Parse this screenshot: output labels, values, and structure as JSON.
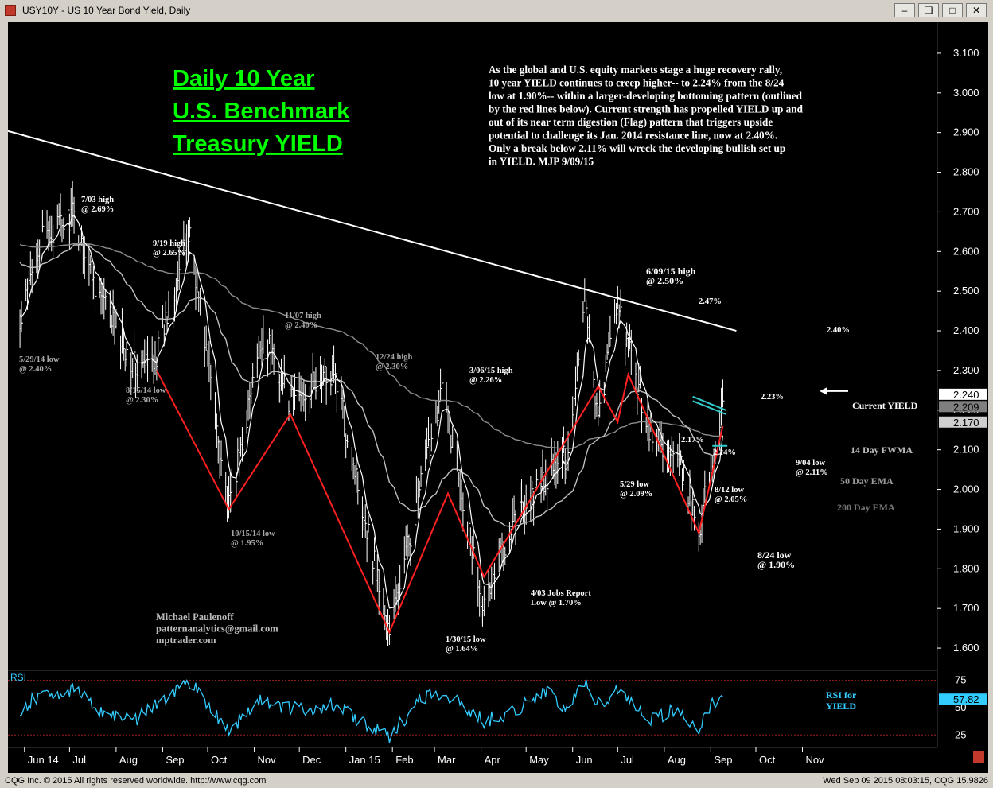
{
  "window": {
    "title": "USY10Y - US 10 Year Bond Yield, Daily",
    "buttons": [
      "min",
      "restore",
      "max",
      "close"
    ]
  },
  "colors": {
    "background": "#000000",
    "price_bars": "#ffffff",
    "trendline": "#ffffff",
    "pattern_lines": "#ff2020",
    "ema_fast": "#ffffff",
    "ema_50": "#bfbfbf",
    "ema_200": "#8c8c8c",
    "flag_lines": "#33cccc",
    "title_text": "#00ff00",
    "annotation_text": "#ffffff"
  },
  "chart_data": [
    {
      "type": "line",
      "title": "Daily 10 Year U.S. Benchmark Treasury YIELD",
      "title_lines": [
        "Daily 10 Year",
        "U.S. Benchmark",
        "Treasury YIELD"
      ],
      "commentary": [
        "As the global and U.S. equity markets stage a huge recovery rally,",
        "10 year YIELD continues to creep higher-- to 2.24% from the 8/24",
        "low at 1.90%-- within a larger-developing bottoming pattern (outlined",
        "by the red lines below). Current strength has propelled YIELD up and",
        "out of its near term digestion (Flag) pattern that triggers upside",
        "potential to challenge its Jan. 2014 resistance line, now at 2.40%.",
        "Only a break below 2.11% will wreck the developing bullish set up",
        "in YIELD.  MJP 9/09/15"
      ],
      "author": [
        "Michael Paulenoff",
        "patternanalytics@gmail.com",
        "mptrader.com"
      ],
      "x_labels": [
        "Jun 14",
        "Jul",
        "Aug",
        "Sep",
        "Oct",
        "Nov",
        "Dec",
        "Jan 15",
        "Feb",
        "Mar",
        "Apr",
        "May",
        "Jun",
        "Jul",
        "Aug",
        "Sep",
        "Oct",
        "Nov"
      ],
      "y_ticks": [
        "3.100",
        "3.000",
        "2.900",
        "2.800",
        "2.700",
        "2.600",
        "2.500",
        "2.400",
        "2.300",
        "2.200",
        "2.100",
        "2.000",
        "1.900",
        "1.800",
        "1.700",
        "1.600"
      ],
      "ylim": [
        1.55,
        3.17
      ],
      "log_scale": false,
      "grid": false,
      "price_flags": [
        {
          "label": "2.240",
          "value": 2.24,
          "style": "white"
        },
        {
          "label": "2.209",
          "value": 2.209,
          "style": "gray"
        },
        {
          "label": "2.170",
          "value": 2.17,
          "style": "lightgray"
        }
      ],
      "series": [
        {
          "name": "YIELD",
          "pivots": [
            [
              "2014-05-29",
              2.4
            ],
            [
              "2014-06-10",
              2.62
            ],
            [
              "2014-07-03",
              2.69
            ],
            [
              "2014-07-20",
              2.5
            ],
            [
              "2014-08-15",
              2.3
            ],
            [
              "2014-08-28",
              2.34
            ],
            [
              "2014-09-19",
              2.65
            ],
            [
              "2014-10-15",
              1.95
            ],
            [
              "2014-11-07",
              2.4
            ],
            [
              "2014-11-25",
              2.22
            ],
            [
              "2014-12-24",
              2.3
            ],
            [
              "2015-01-30",
              1.64
            ],
            [
              "2015-03-06",
              2.26
            ],
            [
              "2015-03-25",
              1.88
            ],
            [
              "2015-04-03",
              1.7
            ],
            [
              "2015-04-22",
              1.93
            ],
            [
              "2015-05-29",
              2.09
            ],
            [
              "2015-06-09",
              2.5
            ],
            [
              "2015-06-18",
              2.17
            ],
            [
              "2015-06-30",
              2.47
            ],
            [
              "2015-07-23",
              2.14
            ],
            [
              "2015-08-12",
              2.05
            ],
            [
              "2015-08-24",
              1.9
            ],
            [
              "2015-09-04",
              2.11
            ],
            [
              "2015-09-09",
              2.24
            ]
          ]
        },
        {
          "name": "14 Day FWMA"
        },
        {
          "name": "50 Day EMA"
        },
        {
          "name": "200 Day EMA"
        }
      ],
      "pattern_lines": [
        [
          [
            "2014-08-28",
            2.3
          ],
          [
            "2014-10-15",
            1.95
          ],
          [
            "2014-11-25",
            2.19
          ],
          [
            "2015-01-30",
            1.64
          ],
          [
            "2015-03-10",
            1.99
          ],
          [
            "2015-04-03",
            1.78
          ],
          [
            "2015-06-18",
            2.26
          ],
          [
            "2015-07-01",
            2.17
          ],
          [
            "2015-07-08",
            2.29
          ],
          [
            "2015-08-24",
            1.89
          ],
          [
            "2015-09-09",
            2.16
          ]
        ]
      ],
      "resistance_line": {
        "label": "Jan. 2014 resistance line",
        "points": [
          [
            "2014-05-15",
            2.91
          ],
          [
            "2015-09-18",
            2.4
          ]
        ]
      },
      "annotations": [
        {
          "text": [
            "7/03 high",
            "@ 2.69%"
          ]
        },
        {
          "text": [
            "9/19 high",
            "@ 2.65%"
          ]
        },
        {
          "text": [
            "5/29/14 low",
            "@ 2.40%"
          ]
        },
        {
          "text": [
            "8/15/14 low",
            "@ 2.30%"
          ]
        },
        {
          "text": [
            "11/07 high",
            "@ 2.40%"
          ]
        },
        {
          "text": [
            "12/24 high",
            "@ 2.30%"
          ]
        },
        {
          "text": [
            "10/15/14 low",
            "@ 1.95%"
          ]
        },
        {
          "text": [
            "3/06/15 high",
            "@ 2.26%"
          ]
        },
        {
          "text": [
            "1/30/15 low",
            "@ 1.64%"
          ]
        },
        {
          "text": [
            "4/03 Jobs Report",
            "Low @ 1.70%"
          ]
        },
        {
          "text": [
            "5/29 low",
            "@ 2.09%"
          ]
        },
        {
          "text": [
            "6/09/15 high",
            "@ 2.50%"
          ]
        },
        {
          "text": [
            "2.47%"
          ]
        },
        {
          "text": [
            "2.17%"
          ]
        },
        {
          "text": [
            "2.14%"
          ]
        },
        {
          "text": [
            "2.23%"
          ]
        },
        {
          "text": [
            "8/12 low",
            "@ 2.05%"
          ]
        },
        {
          "text": [
            "9/04 low",
            "@ 2.11%"
          ]
        },
        {
          "text": [
            "8/24 low",
            "@ 1.90%"
          ]
        },
        {
          "text": [
            "2.40%"
          ]
        },
        {
          "text": [
            "Current YIELD"
          ]
        },
        {
          "text": [
            "14 Day FWMA"
          ]
        },
        {
          "text": [
            "50 Day EMA"
          ]
        },
        {
          "text": [
            "200 Day EMA"
          ]
        }
      ]
    },
    {
      "type": "line",
      "title": "RSI",
      "legend_text": [
        "RSI for",
        "YIELD"
      ],
      "y_ticks": [
        "75",
        "50",
        "25"
      ],
      "ylim": [
        15,
        82
      ],
      "current": "57.82",
      "reference_lines": [
        75,
        25
      ],
      "series": [
        {
          "name": "RSI",
          "pivots": [
            [
              "2014-05-29",
              48
            ],
            [
              "2014-06-12",
              62
            ],
            [
              "2014-07-03",
              66
            ],
            [
              "2014-07-25",
              44
            ],
            [
              "2014-08-15",
              40
            ],
            [
              "2014-09-01",
              58
            ],
            [
              "2014-09-19",
              74
            ],
            [
              "2014-10-15",
              30
            ],
            [
              "2014-11-07",
              58
            ],
            [
              "2014-11-25",
              48
            ],
            [
              "2014-12-24",
              52
            ],
            [
              "2015-01-30",
              22
            ],
            [
              "2015-02-20",
              60
            ],
            [
              "2015-03-06",
              64
            ],
            [
              "2015-04-03",
              38
            ],
            [
              "2015-04-25",
              48
            ],
            [
              "2015-05-12",
              66
            ],
            [
              "2015-05-29",
              48
            ],
            [
              "2015-06-09",
              75
            ],
            [
              "2015-06-20",
              50
            ],
            [
              "2015-06-30",
              68
            ],
            [
              "2015-07-23",
              40
            ],
            [
              "2015-08-10",
              48
            ],
            [
              "2015-08-24",
              30
            ],
            [
              "2015-09-02",
              52
            ],
            [
              "2015-09-09",
              58
            ]
          ]
        }
      ]
    }
  ],
  "footer": {
    "left": "CQG Inc. © 2015 All rights reserved worldwide. http://www.cqg.com",
    "right": "Wed Sep 09 2015 08:03:15, CQG 15.9826"
  }
}
